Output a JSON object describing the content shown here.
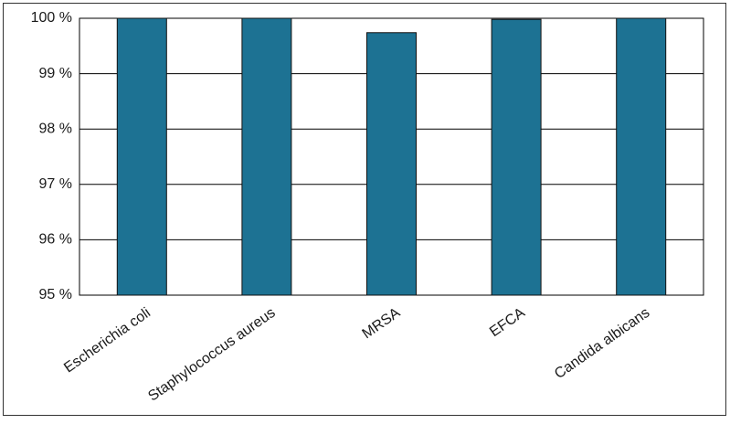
{
  "chart_data": {
    "type": "bar",
    "categories": [
      "Escherichia coli",
      "Staphylococcus aureus",
      "MRSA",
      "EFCA",
      "Candida albicans"
    ],
    "values": [
      100,
      100,
      99.74,
      99.98,
      100
    ],
    "color": "#1d7293",
    "ylim": [
      95,
      100
    ],
    "yticks": [
      {
        "value": 95,
        "label": "95 %"
      },
      {
        "value": 96,
        "label": "96 %"
      },
      {
        "value": 97,
        "label": "97 %"
      },
      {
        "value": 98,
        "label": "98 %"
      },
      {
        "value": 99,
        "label": "99 %"
      },
      {
        "value": 100,
        "label": "100 %"
      }
    ],
    "grid": true
  }
}
